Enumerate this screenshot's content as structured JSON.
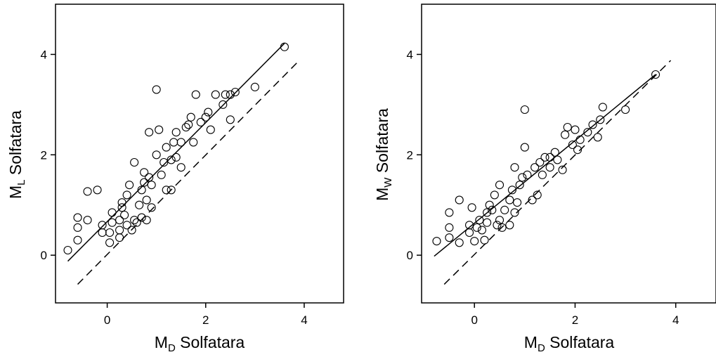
{
  "chart_data": [
    {
      "type": "scatter",
      "title": "",
      "xlabel": "M",
      "xlabel_sub": "D",
      "xlabel_rest": " Solfatara",
      "ylabel": "M",
      "ylabel_sub": "L",
      "ylabel_rest": " Solfatara",
      "xlim": [
        -1.05,
        4.8
      ],
      "ylim": [
        -0.95,
        5.0
      ],
      "xticks": [
        0,
        2,
        4
      ],
      "yticks": [
        0,
        2,
        4
      ],
      "xtick_labels": [
        "0",
        "2",
        "4"
      ],
      "ytick_labels": [
        "0",
        "2",
        "4"
      ],
      "grid": false,
      "points": [
        [
          -0.8,
          0.1
        ],
        [
          -0.6,
          0.3
        ],
        [
          -0.6,
          0.55
        ],
        [
          -0.6,
          0.75
        ],
        [
          -0.4,
          0.7
        ],
        [
          -0.4,
          1.27
        ],
        [
          -0.2,
          1.3
        ],
        [
          -0.1,
          0.45
        ],
        [
          -0.1,
          0.6
        ],
        [
          0.05,
          0.25
        ],
        [
          0.05,
          0.45
        ],
        [
          0.1,
          0.65
        ],
        [
          0.1,
          0.85
        ],
        [
          0.25,
          0.35
        ],
        [
          0.25,
          0.5
        ],
        [
          0.25,
          0.7
        ],
        [
          0.3,
          0.95
        ],
        [
          0.3,
          1.05
        ],
        [
          0.35,
          0.8
        ],
        [
          0.4,
          0.6
        ],
        [
          0.4,
          1.2
        ],
        [
          0.45,
          1.4
        ],
        [
          0.5,
          0.5
        ],
        [
          0.55,
          0.7
        ],
        [
          0.55,
          1.85
        ],
        [
          0.6,
          0.65
        ],
        [
          0.65,
          1.0
        ],
        [
          0.7,
          0.75
        ],
        [
          0.7,
          1.3
        ],
        [
          0.75,
          1.45
        ],
        [
          0.75,
          1.65
        ],
        [
          0.8,
          0.7
        ],
        [
          0.8,
          1.1
        ],
        [
          0.85,
          1.55
        ],
        [
          0.85,
          2.45
        ],
        [
          0.9,
          0.95
        ],
        [
          0.9,
          1.4
        ],
        [
          1.0,
          2.0
        ],
        [
          1.0,
          3.3
        ],
        [
          1.05,
          2.5
        ],
        [
          1.1,
          1.6
        ],
        [
          1.15,
          1.85
        ],
        [
          1.2,
          1.3
        ],
        [
          1.2,
          2.15
        ],
        [
          1.3,
          1.3
        ],
        [
          1.3,
          1.9
        ],
        [
          1.35,
          2.25
        ],
        [
          1.4,
          1.95
        ],
        [
          1.4,
          2.45
        ],
        [
          1.5,
          1.75
        ],
        [
          1.5,
          2.25
        ],
        [
          1.6,
          2.55
        ],
        [
          1.65,
          2.6
        ],
        [
          1.7,
          2.75
        ],
        [
          1.75,
          2.25
        ],
        [
          1.8,
          3.2
        ],
        [
          1.9,
          2.65
        ],
        [
          2.0,
          2.75
        ],
        [
          2.05,
          2.85
        ],
        [
          2.1,
          2.5
        ],
        [
          2.2,
          3.2
        ],
        [
          2.35,
          3.0
        ],
        [
          2.4,
          3.2
        ],
        [
          2.5,
          2.7
        ],
        [
          2.5,
          3.2
        ],
        [
          2.6,
          3.25
        ],
        [
          3.0,
          3.35
        ],
        [
          3.6,
          4.15
        ]
      ],
      "fit_line": {
        "x": [
          -0.8,
          3.6
        ],
        "y": [
          -0.12,
          4.22
        ]
      },
      "reference_line": {
        "x": [
          -0.6,
          3.9
        ],
        "y": [
          -0.58,
          3.88
        ]
      }
    },
    {
      "type": "scatter",
      "title": "",
      "xlabel": "M",
      "xlabel_sub": "D",
      "xlabel_rest": " Solfatara",
      "ylabel": "M",
      "ylabel_sub": "W",
      "ylabel_rest": " Solfatara",
      "xlim": [
        -1.05,
        4.8
      ],
      "ylim": [
        -0.95,
        5.0
      ],
      "xticks": [
        0,
        2,
        4
      ],
      "yticks": [
        0,
        2,
        4
      ],
      "xtick_labels": [
        "0",
        "2",
        "4"
      ],
      "ytick_labels": [
        "0",
        "2",
        "4"
      ],
      "grid": false,
      "points": [
        [
          -0.75,
          0.28
        ],
        [
          -0.5,
          0.35
        ],
        [
          -0.5,
          0.55
        ],
        [
          -0.5,
          0.85
        ],
        [
          -0.3,
          1.1
        ],
        [
          -0.3,
          0.25
        ],
        [
          -0.1,
          0.45
        ],
        [
          -0.1,
          0.6
        ],
        [
          -0.05,
          0.95
        ],
        [
          0.0,
          0.28
        ],
        [
          0.05,
          0.55
        ],
        [
          0.1,
          0.7
        ],
        [
          0.15,
          0.5
        ],
        [
          0.2,
          0.3
        ],
        [
          0.25,
          0.65
        ],
        [
          0.25,
          0.85
        ],
        [
          0.3,
          1.0
        ],
        [
          0.35,
          0.9
        ],
        [
          0.4,
          1.2
        ],
        [
          0.45,
          0.6
        ],
        [
          0.5,
          0.7
        ],
        [
          0.5,
          1.4
        ],
        [
          0.55,
          0.55
        ],
        [
          0.6,
          0.9
        ],
        [
          0.7,
          0.6
        ],
        [
          0.7,
          1.1
        ],
        [
          0.75,
          1.3
        ],
        [
          0.8,
          0.85
        ],
        [
          0.8,
          1.75
        ],
        [
          0.85,
          1.05
        ],
        [
          0.9,
          1.4
        ],
        [
          0.95,
          1.55
        ],
        [
          1.0,
          2.15
        ],
        [
          1.0,
          2.9
        ],
        [
          1.05,
          1.6
        ],
        [
          1.15,
          1.1
        ],
        [
          1.2,
          1.75
        ],
        [
          1.25,
          1.2
        ],
        [
          1.3,
          1.85
        ],
        [
          1.35,
          1.6
        ],
        [
          1.4,
          1.95
        ],
        [
          1.5,
          1.75
        ],
        [
          1.5,
          1.95
        ],
        [
          1.6,
          2.05
        ],
        [
          1.65,
          1.9
        ],
        [
          1.75,
          1.7
        ],
        [
          1.8,
          2.4
        ],
        [
          1.85,
          2.55
        ],
        [
          1.95,
          2.2
        ],
        [
          2.0,
          2.5
        ],
        [
          2.05,
          2.1
        ],
        [
          2.1,
          2.3
        ],
        [
          2.25,
          2.45
        ],
        [
          2.35,
          2.6
        ],
        [
          2.45,
          2.35
        ],
        [
          2.5,
          2.7
        ],
        [
          2.55,
          2.95
        ],
        [
          3.0,
          2.9
        ],
        [
          3.6,
          3.6
        ]
      ],
      "fit_line": {
        "x": [
          -0.8,
          3.6
        ],
        "y": [
          -0.02,
          3.6
        ]
      },
      "reference_line": {
        "x": [
          -0.6,
          3.9
        ],
        "y": [
          -0.58,
          3.88
        ]
      }
    }
  ]
}
